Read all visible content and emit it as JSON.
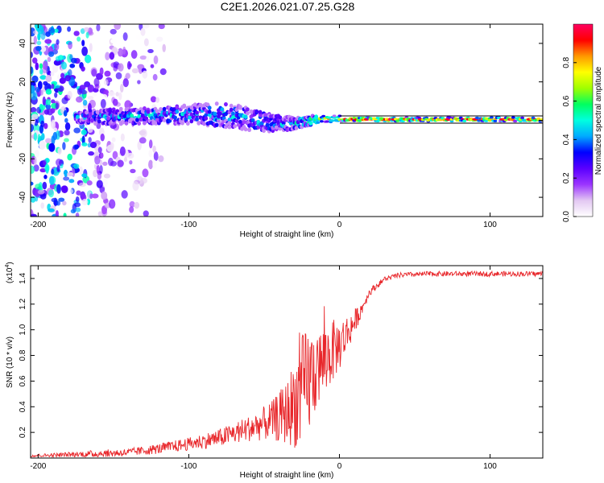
{
  "title": "C2E1.2026.021.07.25.G28",
  "chart_data": [
    {
      "type": "heatmap",
      "name": "spectrogram",
      "xlabel": "Height of straight line (km)",
      "ylabel": "Frequency (Hz)",
      "xlim": [
        -205,
        135
      ],
      "ylim": [
        -50,
        50
      ],
      "xticks": [
        -200,
        -100,
        0,
        100
      ],
      "yticks": [
        -40,
        -20,
        0,
        20,
        40
      ],
      "colorbar": {
        "label": "Normalized spectral amplitude",
        "range": [
          0,
          1
        ],
        "ticks": [
          "0.0",
          "0.2",
          "0.4",
          "0.6",
          "0.8"
        ],
        "colors": [
          "#ffffff",
          "#e3c8f2",
          "#9b35ff",
          "#5a00ff",
          "#0000ff",
          "#00aaff",
          "#00ffe0",
          "#00ff60",
          "#a0ff00",
          "#ffff00",
          "#ff9900",
          "#ff0000",
          "#ff0060"
        ]
      },
      "signal_track": [
        {
          "x": -175,
          "f": 1.5,
          "spread": 3,
          "amp": 0.3
        },
        {
          "x": -150,
          "f": 2.0,
          "spread": 4,
          "amp": 0.35
        },
        {
          "x": -120,
          "f": 2.5,
          "spread": 4,
          "amp": 0.4
        },
        {
          "x": -100,
          "f": 3.0,
          "spread": 5,
          "amp": 0.35
        },
        {
          "x": -80,
          "f": 3.0,
          "spread": 6,
          "amp": 0.4
        },
        {
          "x": -60,
          "f": 1.0,
          "spread": 6,
          "amp": 0.35
        },
        {
          "x": -45,
          "f": -2.0,
          "spread": 5,
          "amp": 0.35
        },
        {
          "x": -30,
          "f": -1.5,
          "spread": 3,
          "amp": 0.4
        },
        {
          "x": -15,
          "f": 0.5,
          "spread": 2,
          "amp": 0.7
        },
        {
          "x": 0,
          "f": 1.0,
          "spread": 1.5,
          "amp": 0.8
        },
        {
          "x": 10,
          "f": 0.5,
          "spread": 1,
          "amp": 0.9
        },
        {
          "x": 50,
          "f": 0.5,
          "spread": 1,
          "amp": 0.9
        },
        {
          "x": 90,
          "f": 0.5,
          "spread": 1,
          "amp": 0.85
        },
        {
          "x": 135,
          "f": 0.5,
          "spread": 1,
          "amp": 0.9
        }
      ],
      "noise_region": {
        "x_from": -205,
        "x_to": -115,
        "f_range": [
          -50,
          50
        ]
      }
    },
    {
      "type": "line",
      "name": "snr",
      "xlabel": "Height of straight line (km)",
      "ylabel": "SNR (10 * v/v)",
      "y_multiplier": "(x10",
      "y_multiplier_exp": "4",
      "y_multiplier_close": ")",
      "xlim": [
        -205,
        135
      ],
      "ylim": [
        0,
        1.5
      ],
      "xticks": [
        -200,
        -100,
        0,
        100
      ],
      "yticks": [
        "0.2",
        "0.4",
        "0.6",
        "0.8",
        "1.0",
        "1.2",
        "1.4"
      ],
      "color": "#e8262a",
      "series": [
        {
          "name": "SNR",
          "x": [
            -205,
            -180,
            -160,
            -140,
            -120,
            -100,
            -80,
            -60,
            -45,
            -35,
            -30,
            -25,
            -20,
            -15,
            -10,
            -5,
            0,
            5,
            10,
            15,
            20,
            30,
            40,
            60,
            80,
            100,
            120,
            135
          ],
          "y": [
            0.02,
            0.03,
            0.04,
            0.05,
            0.08,
            0.12,
            0.17,
            0.25,
            0.32,
            0.4,
            0.5,
            0.6,
            0.7,
            0.75,
            0.82,
            0.88,
            0.92,
            1.0,
            1.08,
            1.18,
            1.3,
            1.4,
            1.43,
            1.44,
            1.44,
            1.44,
            1.44,
            1.44
          ],
          "noise": [
            0.01,
            0.02,
            0.03,
            0.03,
            0.04,
            0.05,
            0.07,
            0.1,
            0.15,
            0.25,
            0.35,
            0.45,
            0.45,
            0.3,
            0.3,
            0.25,
            0.2,
            0.15,
            0.1,
            0.05,
            0.03,
            0.02,
            0.02,
            0.02,
            0.02,
            0.02,
            0.02,
            0.02
          ]
        }
      ]
    }
  ]
}
